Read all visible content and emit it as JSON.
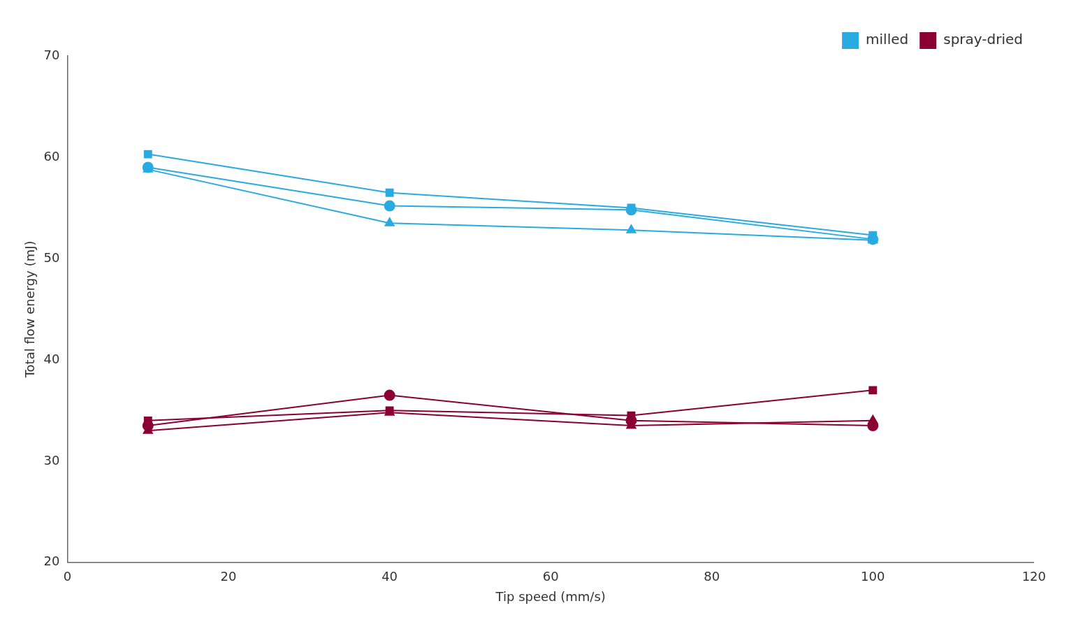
{
  "chart_data": {
    "type": "line",
    "x_label": "Tip speed (mm/s)",
    "y_label": "Total flow energy (mJ)",
    "x": [
      10,
      40,
      70,
      100
    ],
    "series": [
      {
        "name": "milled",
        "color": "#29ABE2",
        "marker": "square",
        "values": [
          60.3,
          56.5,
          55.0,
          52.3
        ]
      },
      {
        "name": "milled",
        "color": "#29ABE2",
        "marker": "circle",
        "values": [
          59.0,
          55.2,
          54.8,
          51.9
        ]
      },
      {
        "name": "milled",
        "color": "#29ABE2",
        "marker": "triangle",
        "values": [
          58.8,
          53.5,
          52.8,
          51.8
        ]
      },
      {
        "name": "spray-dried",
        "color": "#8B0033",
        "marker": "square",
        "values": [
          34.0,
          35.0,
          34.5,
          37.0
        ]
      },
      {
        "name": "spray-dried",
        "color": "#8B0033",
        "marker": "circle",
        "values": [
          33.5,
          36.5,
          34.0,
          33.5
        ]
      },
      {
        "name": "spray-dried",
        "color": "#8B0033",
        "marker": "triangle",
        "values": [
          33.0,
          34.8,
          33.5,
          34.0
        ]
      }
    ],
    "xlim": [
      0,
      120
    ],
    "ylim": [
      20,
      70
    ],
    "xticks": [
      0,
      20,
      40,
      60,
      80,
      100,
      120
    ],
    "yticks": [
      20,
      30,
      40,
      50,
      60,
      70
    ],
    "grid": false,
    "legend": "upper right"
  }
}
